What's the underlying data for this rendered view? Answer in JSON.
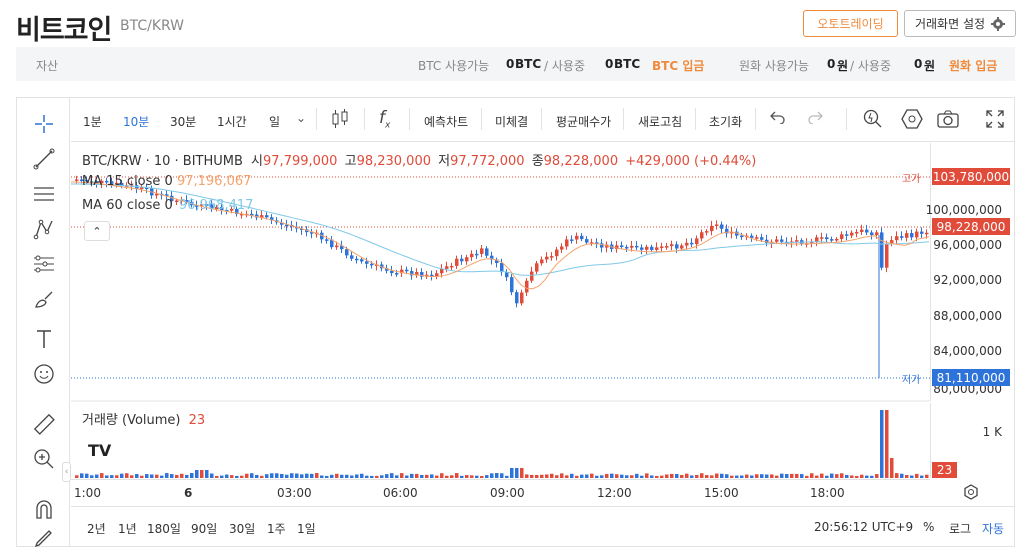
{
  "header": {
    "title": "비트코인",
    "subtitle": "BTC/KRW",
    "autotrade_label": "오토트레이딩",
    "settings_label": "거래화면 설정"
  },
  "assets": {
    "label": "자산",
    "btc_available_label": "BTC 사용가능",
    "btc_available": "0",
    "btc_unit": "BTC",
    "in_use_label": "/ 사용중",
    "btc_in_use": "0",
    "btc_deposit_label": "BTC 입금",
    "krw_available_label": "원화 사용가능",
    "krw_available": "0",
    "krw_unit": "원",
    "krw_in_use": "0",
    "krw_deposit_label": "원화 입금"
  },
  "toolbar": {
    "intervals": [
      "1분",
      "10분",
      "30분",
      "1시간",
      "일"
    ],
    "active_interval": "10분",
    "indicator_label": "예측차트",
    "unfilled_label": "미체결",
    "avg_price_label": "평균매수가",
    "refresh_label": "새로고침",
    "reset_label": "초기화"
  },
  "legend": {
    "symbol": "BTC/KRW · 10 · BITHUMB",
    "open_label": "시",
    "open": "97,799,000",
    "high_label": "고",
    "high": "98,230,000",
    "low_label": "저",
    "low": "97,772,000",
    "close_label": "종",
    "close": "98,228,000",
    "change": "+429,000 (+0.44%)",
    "ma15_label": "MA 15 close 0",
    "ma15_value": "97,196,067",
    "ma60_label": "MA 60 close 0",
    "ma60_value": "96,968,417"
  },
  "price_axis": {
    "labels": [
      "100,000,000",
      "96,000,000",
      "92,000,000",
      "88,000,000",
      "84,000,000",
      "80,000,000"
    ],
    "high_tag": "고가",
    "high_value": "103,780,000",
    "current_value": "98,228,000",
    "low_tag": "저가",
    "low_value": "81,110,000"
  },
  "volume": {
    "label": "거래량 (Volume)",
    "value": "23",
    "axis_label": "1 K"
  },
  "time_axis": [
    "1:00",
    "6",
    "03:00",
    "06:00",
    "09:00",
    "12:00",
    "15:00",
    "18:00"
  ],
  "bottom": {
    "ranges": [
      "2년",
      "1년",
      "180일",
      "90일",
      "30일",
      "1주",
      "1일"
    ],
    "clock": "20:56:12 UTC+9",
    "percent_label": "%",
    "log_label": "로그",
    "auto_label": "자동"
  },
  "colors": {
    "up": "#e04b3a",
    "down": "#2e73d9",
    "accent": "#f08a3c",
    "ma15": "#f5a36b",
    "ma60": "#7fc9e8"
  }
}
